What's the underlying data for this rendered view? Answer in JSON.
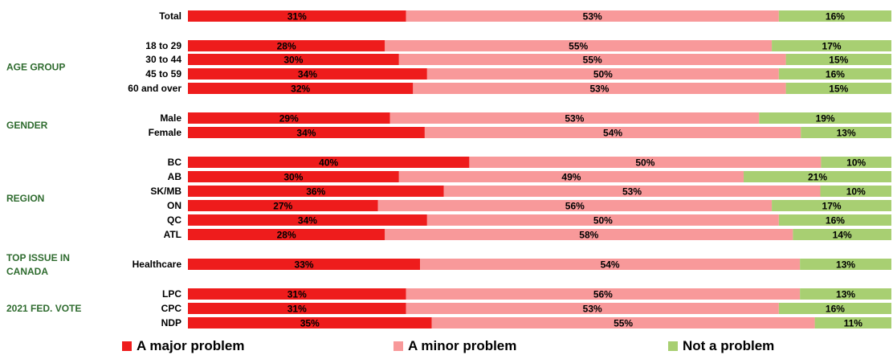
{
  "colors": {
    "major": "#EE1C1C",
    "minor": "#F8999A",
    "not": "#A8CF72",
    "group_label": "#2E6B2E"
  },
  "legend": {
    "major": "A major problem",
    "minor": "A minor problem",
    "not": "Not a problem"
  },
  "chart_data": {
    "type": "bar",
    "orientation": "horizontal",
    "stacked": true,
    "percent_scale": [
      0,
      100
    ],
    "series": [
      {
        "name": "A major problem",
        "color": "#EE1C1C"
      },
      {
        "name": "A minor problem",
        "color": "#F8999A"
      },
      {
        "name": "Not a problem",
        "color": "#A8CF72"
      }
    ],
    "groups": [
      {
        "group": "",
        "rows": [
          {
            "label": "Total",
            "values": [
              31,
              53,
              16
            ]
          }
        ]
      },
      {
        "group": "AGE GROUP",
        "rows": [
          {
            "label": "18 to 29",
            "values": [
              28,
              55,
              17
            ]
          },
          {
            "label": "30 to 44",
            "values": [
              30,
              55,
              15
            ]
          },
          {
            "label": "45 to 59",
            "values": [
              34,
              50,
              16
            ]
          },
          {
            "label": "60 and over",
            "values": [
              32,
              53,
              15
            ]
          }
        ]
      },
      {
        "group": "GENDER",
        "rows": [
          {
            "label": "Male",
            "values": [
              29,
              53,
              19
            ]
          },
          {
            "label": "Female",
            "values": [
              34,
              54,
              13
            ]
          }
        ]
      },
      {
        "group": "REGION",
        "rows": [
          {
            "label": "BC",
            "values": [
              40,
              50,
              10
            ]
          },
          {
            "label": "AB",
            "values": [
              30,
              49,
              21
            ]
          },
          {
            "label": "SK/MB",
            "values": [
              36,
              53,
              10
            ]
          },
          {
            "label": "ON",
            "values": [
              27,
              56,
              17
            ]
          },
          {
            "label": "QC",
            "values": [
              34,
              50,
              16
            ]
          },
          {
            "label": "ATL",
            "values": [
              28,
              58,
              14
            ]
          }
        ]
      },
      {
        "group": "TOP ISSUE IN CANADA",
        "rows": [
          {
            "label": "Healthcare",
            "values": [
              33,
              54,
              13
            ]
          }
        ]
      },
      {
        "group": "2021 FED. VOTE",
        "rows": [
          {
            "label": "LPC",
            "values": [
              31,
              56,
              13
            ]
          },
          {
            "label": "CPC",
            "values": [
              31,
              53,
              16
            ]
          },
          {
            "label": "NDP",
            "values": [
              35,
              55,
              11
            ]
          }
        ]
      }
    ]
  }
}
